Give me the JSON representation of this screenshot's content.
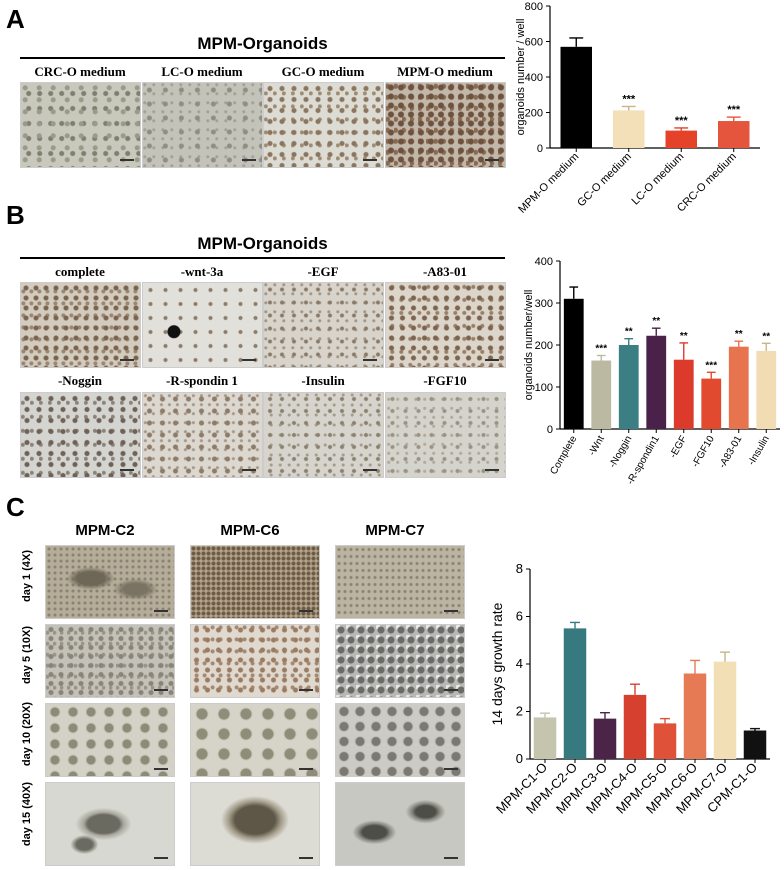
{
  "panels": {
    "A": {
      "label": "A",
      "title": "MPM-Organoids",
      "images": [
        "CRC-O medium",
        "LC-O medium",
        "GC-O medium",
        "MPM-O medium"
      ]
    },
    "B": {
      "label": "B",
      "title": "MPM-Organoids",
      "images_row1": [
        "complete",
        "-wnt-3a",
        "-EGF",
        "-A83-01"
      ],
      "images_row2": [
        "-Noggin",
        "-R-spondin 1",
        "-Insulin",
        "-FGF10"
      ]
    },
    "C": {
      "label": "C",
      "columns": [
        "MPM-C2",
        "MPM-C6",
        "MPM-C7"
      ],
      "rows": [
        "day 1 (4X)",
        "day 5 (10X)",
        "day 10 (20X)",
        "day 15 (40X)"
      ]
    }
  },
  "chart_data": [
    {
      "type": "bar",
      "categories": [
        "MPM-O medium",
        "GC-O medium",
        "LC-O medium",
        "CRC-O medium"
      ],
      "values": [
        570,
        212,
        98,
        152
      ],
      "errors": [
        50,
        22,
        15,
        22
      ],
      "significance": [
        "",
        "***",
        "***",
        "***"
      ],
      "colors": [
        "#000000",
        "#f3dfb8",
        "#e4432a",
        "#e5553e"
      ],
      "ylabel": "organoids number / well",
      "ylim": [
        0,
        800
      ],
      "yticks": [
        0,
        200,
        400,
        600,
        800
      ]
    },
    {
      "type": "bar",
      "categories": [
        "Complete",
        "-Wnt",
        "-Noggin",
        "-R-spondin1",
        "-EGF",
        "-FGF10",
        "-A83-01",
        "-Insulin"
      ],
      "values": [
        310,
        163,
        200,
        222,
        165,
        120,
        196,
        186
      ],
      "errors": [
        28,
        12,
        15,
        18,
        40,
        15,
        13,
        18
      ],
      "significance": [
        "",
        "***",
        "**",
        "**",
        "**",
        "***",
        "**",
        "**"
      ],
      "colors": [
        "#000000",
        "#bcb9a3",
        "#3b7f84",
        "#4a2148",
        "#dc3b2c",
        "#e24a30",
        "#e8734f",
        "#f2dcb3"
      ],
      "ylabel": "organoids number/well",
      "ylim": [
        0,
        400
      ],
      "yticks": [
        0,
        100,
        200,
        300,
        400
      ]
    },
    {
      "type": "bar",
      "categories": [
        "MPM-C1-O",
        "MPM-C2-O",
        "MPM-C3-O",
        "MPM-C4-O",
        "MPM-C5-O",
        "MPM-C6-O",
        "MPM-C7-O",
        "CPM-C1-O"
      ],
      "values": [
        1.75,
        5.5,
        1.7,
        2.7,
        1.5,
        3.6,
        4.1,
        1.2
      ],
      "errors": [
        0.18,
        0.25,
        0.25,
        0.45,
        0.2,
        0.55,
        0.4,
        0.08
      ],
      "colors": [
        "#c5c4ac",
        "#367a80",
        "#4b2447",
        "#d6402f",
        "#e0513a",
        "#e67a55",
        "#f3dfb6",
        "#111111"
      ],
      "ylabel": "14 days growth rate",
      "ylim": [
        0,
        8
      ],
      "yticks": [
        0,
        2,
        4,
        6,
        8
      ]
    }
  ]
}
